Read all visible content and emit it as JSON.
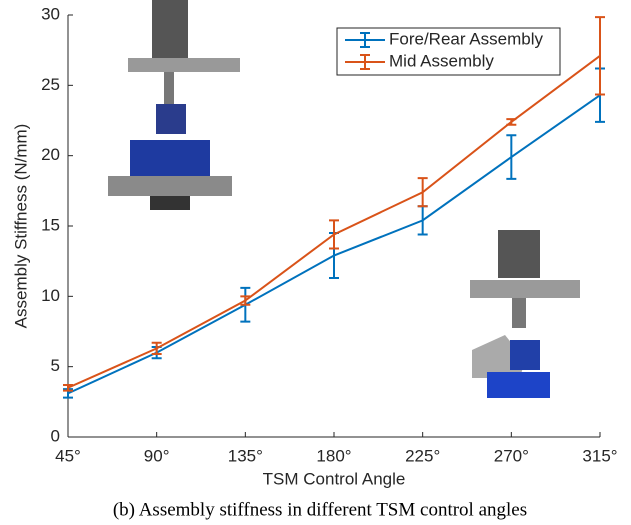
{
  "chart_data": {
    "type": "line",
    "ylabel": "Assembly Stiffness (N/mm)",
    "xlabel": "TSM Control Angle",
    "caption": "(b) Assembly stiffness in different TSM control angles",
    "x": [
      45,
      90,
      135,
      180,
      225,
      270,
      315
    ],
    "xlim": [
      45,
      315
    ],
    "xticks": [
      {
        "value": 45,
        "label": "45°"
      },
      {
        "value": 90,
        "label": "90°"
      },
      {
        "value": 135,
        "label": "135°"
      },
      {
        "value": 180,
        "label": "180°"
      },
      {
        "value": 225,
        "label": "225°"
      },
      {
        "value": 270,
        "label": "270°"
      },
      {
        "value": 315,
        "label": "315°"
      }
    ],
    "ylim": [
      0,
      30
    ],
    "yticks": [
      0,
      5,
      10,
      15,
      20,
      25,
      30
    ],
    "legend": "top-right",
    "series": [
      {
        "name": "Fore/Rear Assembly",
        "color": "#0072bd",
        "values": [
          3.1,
          6.0,
          9.4,
          12.9,
          15.4,
          19.9,
          24.3
        ],
        "errors": [
          0.3,
          0.4,
          1.2,
          1.6,
          1.0,
          1.55,
          1.9
        ]
      },
      {
        "name": "Mid Assembly",
        "color": "#d95319",
        "values": [
          3.5,
          6.3,
          9.7,
          14.4,
          17.4,
          22.4,
          27.1
        ],
        "errors": [
          0.2,
          0.4,
          0.3,
          1.0,
          1.0,
          0.2,
          2.75
        ]
      }
    ]
  }
}
